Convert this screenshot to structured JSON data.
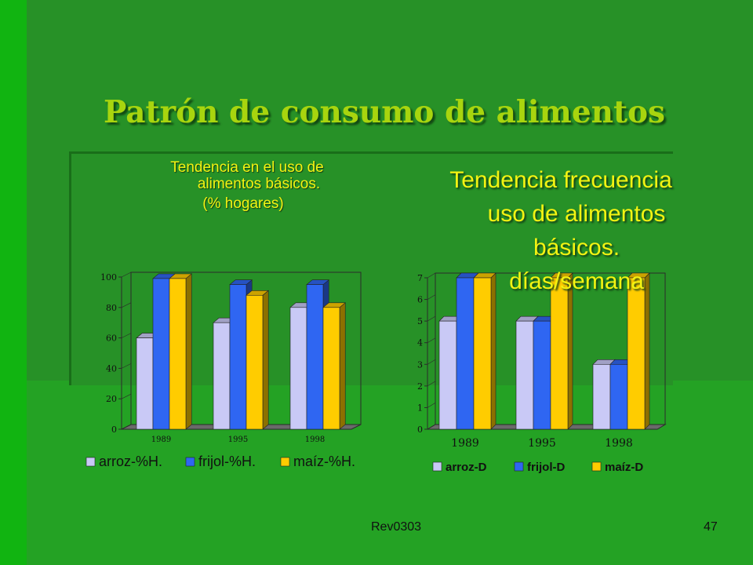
{
  "slide": {
    "title": "Patrón de consumo de  alimentos",
    "left_subtitle": {
      "line1": "Tendencia en el uso de",
      "line2": "alimentos básicos.",
      "line3": "(% hogares)"
    },
    "right_subtitle": {
      "line1": "Tendencia frecuencia",
      "line2": "uso de alimentos",
      "line3": "básicos.",
      "line4": "días/semana"
    },
    "footer_left": "Rev0303",
    "footer_right": "47"
  },
  "colors": {
    "background": "#279127",
    "title": "#a8d50e",
    "subtitle": "#f3f312",
    "series": [
      "#c9c9f6",
      "#2f66f2",
      "#ffcc00"
    ]
  },
  "chart_data": [
    {
      "type": "bar",
      "title": "",
      "categories": [
        "1989",
        "1995",
        "1998"
      ],
      "series": [
        {
          "name": "arroz-%H.",
          "values": [
            60,
            70,
            80
          ]
        },
        {
          "name": "frijol-%H.",
          "values": [
            99,
            95,
            95
          ]
        },
        {
          "name": "maíz-%H.",
          "values": [
            99,
            88,
            80
          ]
        }
      ],
      "yticks": [
        "0",
        "20",
        "40",
        "60",
        "80",
        "100"
      ],
      "ylim": [
        0,
        100
      ],
      "grid": false,
      "legend": "bottom"
    },
    {
      "type": "bar",
      "title": "",
      "categories": [
        "1989",
        "1995",
        "1998"
      ],
      "series": [
        {
          "name": "arroz-D",
          "values": [
            5,
            5,
            3
          ]
        },
        {
          "name": "frijol-D",
          "values": [
            7,
            5,
            3
          ]
        },
        {
          "name": "maíz-D",
          "values": [
            7,
            7,
            7
          ]
        }
      ],
      "yticks": [
        "0",
        "1",
        "2",
        "3",
        "4",
        "5",
        "6",
        "7"
      ],
      "ylim": [
        0,
        7
      ],
      "grid": false,
      "legend": "bottom"
    }
  ]
}
